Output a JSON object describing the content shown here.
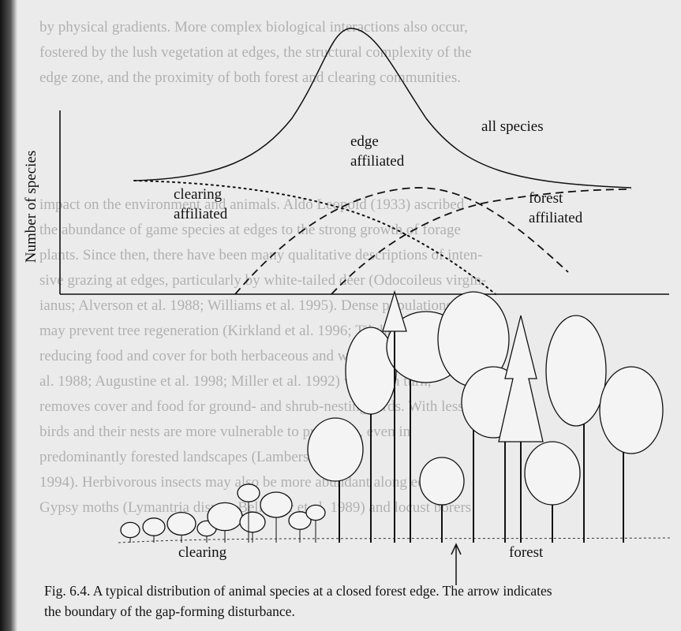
{
  "figure": {
    "y_axis_label": "Number of species",
    "curve_labels": {
      "all_species": "all species",
      "edge": [
        "edge",
        "affiliated"
      ],
      "clearing": [
        "clearing",
        "affiliated"
      ],
      "forest": [
        "forest",
        "affiliated"
      ]
    },
    "scene_labels": {
      "clearing": "clearing",
      "forest": "forest"
    },
    "caption": [
      "Fig. 6.4. A typical distribution of animal species at a closed forest edge. The arrow indicates",
      "the boundary of the gap-forming disturbance."
    ]
  },
  "bleed_through": [
    "by physical gradients. More complex biological interactions also occur,",
    "fostered by the lush vegetation at edges, the structural complexity of the",
    "edge zone, and the proximity of both forest and clearing communities.",
    "impact on the environment and animals. Aldo Leopold (1933) ascribed",
    "the abundance of game species at edges to the strong growth of forage",
    "plants. Since then, there have been many qualitative descriptions of inten-",
    "sive grazing at edges, particularly by white-tailed deer (Odocoileus virgin-",
    "ianus; Alverson et al. 1988; Williams et al. 1995). Dense populations of deer",
    "may prevent tree regeneration (Kirkland et al. 1996; Tilghman 1989),",
    "reducing food and cover for both herbaceous and woody plants (Alverson et",
    "al. 1988; Augustine et al. 1998; Miller et al. 1992) which, in turn,",
    "removes cover and food for ground- and shrub-nesting birds. With less cover,",
    "birds and their nests are more vulnerable to predation, even in",
    "predominantly forested landscapes (Lamberson et al.",
    "1994). Herbivorous insects may also be more abundant along edges.",
    "Gypsy moths (Lymantria dispar; Bellinger et al. 1989) and locust borers"
  ]
}
